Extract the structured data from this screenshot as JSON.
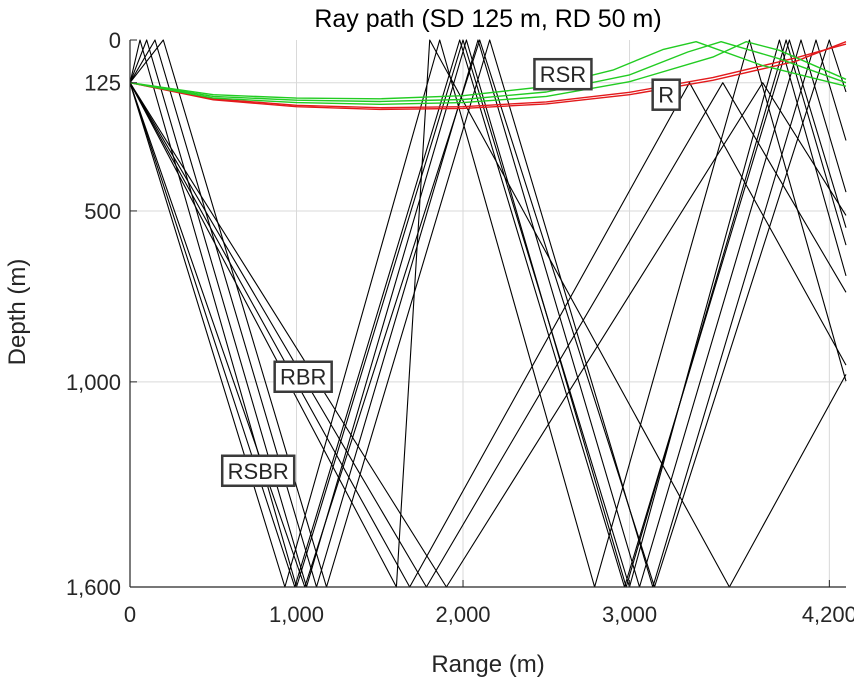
{
  "chart_data": {
    "type": "line",
    "title": "Ray path (SD 125 m, RD 50 m)",
    "xlabel": "Range (m)",
    "ylabel": "Depth (m)",
    "xlim": [
      0,
      4300
    ],
    "ylim": [
      0,
      1600
    ],
    "y_reversed": true,
    "grid": true,
    "x_ticks": [
      0,
      1000,
      2000,
      3000,
      4200
    ],
    "x_tick_labels": [
      "0",
      "1,000",
      "2,000",
      "3,000",
      "4,200"
    ],
    "y_ticks": [
      0,
      125,
      500,
      1000,
      1600
    ],
    "y_tick_labels": [
      "0",
      "125",
      "500",
      "1,000",
      "1,600"
    ],
    "colors": {
      "R": "#e31a1c",
      "RSR": "#22cc22",
      "bottom": "#000000",
      "grid": "#d9d9d9"
    },
    "series": [
      {
        "name": "R",
        "color": "#e31a1c",
        "x": [
          0,
          500,
          1000,
          1500,
          2000,
          2500,
          3000,
          3500,
          4000,
          4300
        ],
        "y": [
          125,
          175,
          195,
          203,
          200,
          187,
          160,
          118,
          62,
          5
        ]
      },
      {
        "color": "#e31a1c",
        "x": [
          0,
          500,
          1000,
          1500,
          2000,
          2500,
          3000,
          3500,
          4000,
          4300
        ],
        "y": [
          125,
          172,
          191,
          198,
          195,
          181,
          153,
          110,
          52,
          12
        ]
      },
      {
        "name": "RSR",
        "color": "#22cc22",
        "x": [
          0,
          500,
          1000,
          1500,
          2000,
          2500,
          3000,
          3500,
          3700,
          3900,
          4300
        ],
        "y": [
          125,
          170,
          183,
          188,
          183,
          165,
          122,
          50,
          5,
          30,
          115
        ]
      },
      {
        "color": "#22cc22",
        "x": [
          0,
          500,
          1000,
          1500,
          2000,
          2500,
          3000,
          3350,
          3550,
          3900,
          4300
        ],
        "y": [
          125,
          165,
          176,
          180,
          174,
          152,
          102,
          35,
          5,
          55,
          125
        ]
      },
      {
        "color": "#22cc22",
        "x": [
          0,
          500,
          1000,
          1500,
          2000,
          2500,
          2900,
          3200,
          3400,
          3800,
          4300
        ],
        "y": [
          125,
          160,
          170,
          172,
          163,
          136,
          88,
          28,
          5,
          75,
          135
        ]
      },
      {
        "color": "#000000",
        "x": [
          0,
          60,
          1000,
          2000,
          3000,
          3900,
          4300
        ],
        "y": [
          125,
          0,
          1600,
          0,
          1600,
          0,
          690
        ]
      },
      {
        "color": "#000000",
        "x": [
          0,
          100,
          1060,
          2020,
          2980,
          3940,
          4300
        ],
        "y": [
          125,
          0,
          1600,
          0,
          1600,
          0,
          600
        ]
      },
      {
        "color": "#000000",
        "x": [
          0,
          150,
          1120,
          2090,
          3060,
          4030,
          4300
        ],
        "y": [
          125,
          0,
          1600,
          0,
          1600,
          0,
          445
        ]
      },
      {
        "color": "#000000",
        "x": [
          0,
          200,
          1180,
          2160,
          3140,
          4120,
          4300
        ],
        "y": [
          125,
          0,
          1600,
          0,
          1600,
          0,
          294
        ]
      },
      {
        "color": "#000000",
        "x": [
          0,
          1050,
          2100,
          3150,
          4200,
          4300
        ],
        "y": [
          125,
          1600,
          0,
          1600,
          0,
          152
        ]
      },
      {
        "color": "#000000",
        "x": [
          0,
          990,
          1980,
          2970,
          3960,
          4300
        ],
        "y": [
          125,
          1600,
          0,
          1600,
          0,
          549
        ]
      },
      {
        "color": "#000000",
        "x": [
          0,
          930,
          1860,
          2790,
          3720,
          4300
        ],
        "y": [
          125,
          1600,
          0,
          1600,
          0,
          998
        ]
      },
      {
        "color": "#000000",
        "x": [
          0,
          1900,
          3800,
          4300
        ],
        "y": [
          125,
          1600,
          125,
          513
        ]
      },
      {
        "color": "#000000",
        "x": [
          0,
          1780,
          3560,
          4300
        ],
        "y": [
          125,
          1600,
          125,
          738
        ]
      },
      {
        "color": "#000000",
        "x": [
          0,
          1680,
          3360,
          4300
        ],
        "y": [
          125,
          1600,
          125,
          951
        ]
      },
      {
        "color": "#000000",
        "x": [
          0,
          1600,
          1800,
          3600,
          4300
        ],
        "y": [
          125,
          1600,
          0,
          1600,
          978
        ]
      }
    ],
    "annotations": [
      {
        "text": "RSR",
        "x": 2600,
        "y": 100
      },
      {
        "text": "R",
        "x": 3220,
        "y": 160
      },
      {
        "text": "RBR",
        "x": 1040,
        "y": 985
      },
      {
        "text": "RSBR",
        "x": 770,
        "y": 1260
      }
    ]
  }
}
